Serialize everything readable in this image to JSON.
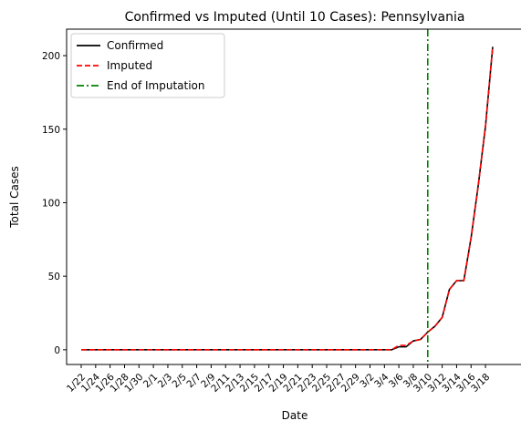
{
  "chart_data": {
    "type": "line",
    "title": "Confirmed vs Imputed (Until 10 Cases): Pennsylvania",
    "xlabel": "Date",
    "ylabel": "Total Cases",
    "x": [
      "1/22",
      "1/23",
      "1/24",
      "1/25",
      "1/26",
      "1/27",
      "1/28",
      "1/29",
      "1/30",
      "1/31",
      "2/1",
      "2/2",
      "2/3",
      "2/4",
      "2/5",
      "2/6",
      "2/7",
      "2/8",
      "2/9",
      "2/10",
      "2/11",
      "2/12",
      "2/13",
      "2/14",
      "2/15",
      "2/16",
      "2/17",
      "2/18",
      "2/19",
      "2/20",
      "2/21",
      "2/22",
      "2/23",
      "2/24",
      "2/25",
      "2/26",
      "2/27",
      "2/28",
      "2/29",
      "3/1",
      "3/2",
      "3/3",
      "3/4",
      "3/5",
      "3/6",
      "3/7",
      "3/8",
      "3/9",
      "3/10",
      "3/11",
      "3/12",
      "3/13",
      "3/14",
      "3/15",
      "3/16",
      "3/17",
      "3/18",
      "3/19"
    ],
    "x_tick_labels": [
      "1/22",
      "1/24",
      "1/26",
      "1/28",
      "1/30",
      "2/1",
      "2/3",
      "2/5",
      "2/7",
      "2/9",
      "2/11",
      "2/13",
      "2/15",
      "2/17",
      "2/19",
      "2/21",
      "2/23",
      "2/25",
      "2/27",
      "2/29",
      "3/2",
      "3/4",
      "3/6",
      "3/8",
      "3/10",
      "3/12",
      "3/14",
      "3/16",
      "3/18"
    ],
    "yticks": [
      0,
      50,
      100,
      150,
      200
    ],
    "ylim": [
      -10,
      218
    ],
    "series": [
      {
        "name": "Confirmed",
        "color": "#000000",
        "style": "solid",
        "values": [
          0,
          0,
          0,
          0,
          0,
          0,
          0,
          0,
          0,
          0,
          0,
          0,
          0,
          0,
          0,
          0,
          0,
          0,
          0,
          0,
          0,
          0,
          0,
          0,
          0,
          0,
          0,
          0,
          0,
          0,
          0,
          0,
          0,
          0,
          0,
          0,
          0,
          0,
          0,
          0,
          0,
          0,
          0,
          0,
          2,
          2,
          6,
          7,
          12,
          16,
          22,
          41,
          47,
          47,
          76,
          112,
          152,
          206
        ]
      },
      {
        "name": "Imputed",
        "color": "#ff0000",
        "style": "dashed",
        "values": [
          0,
          0,
          0,
          0,
          0,
          0,
          0,
          0,
          0,
          0,
          0,
          0,
          0,
          0,
          0,
          0,
          0,
          0,
          0,
          0,
          0,
          0,
          0,
          0,
          0,
          0,
          0,
          0,
          0,
          0,
          0,
          0,
          0,
          0,
          0,
          0,
          0,
          0,
          0,
          0,
          0,
          0,
          0,
          0,
          3,
          3,
          6,
          7,
          12,
          16,
          22,
          41,
          47,
          47,
          76,
          112,
          152,
          206
        ]
      }
    ],
    "vline": {
      "name": "End of Imputation",
      "x": "3/10",
      "color": "#008000",
      "style": "dashdot"
    },
    "legend": "top-left",
    "grid": false
  }
}
